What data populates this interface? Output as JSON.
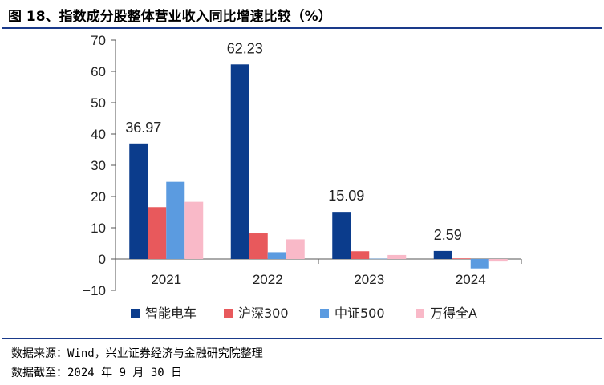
{
  "title": "图 18、指数成分股整体营业收入同比增速比较（%）",
  "source_lines": [
    "数据来源：Wind，兴业证券经济与金融研究院整理",
    "数据截至：2024 年 9 月 30 日"
  ],
  "chart_data": {
    "type": "bar",
    "title": "图 18、指数成分股整体营业收入同比增速比较（%）",
    "xlabel": "",
    "ylabel": "",
    "categories": [
      "2021",
      "2022",
      "2023",
      "2024"
    ],
    "ylim": [
      -10,
      70
    ],
    "yticks": [
      -10,
      0,
      10,
      20,
      30,
      40,
      50,
      60,
      70
    ],
    "ytick_labels": [
      "−10",
      "0",
      "10",
      "20",
      "30",
      "40",
      "50",
      "60",
      "70"
    ],
    "grid": false,
    "legend_position": "bottom",
    "series": [
      {
        "name": "智能电车",
        "color": "#0b3c8c",
        "values": [
          36.97,
          62.23,
          15.09,
          2.59
        ]
      },
      {
        "name": "沪深300",
        "color": "#e8595c",
        "values": [
          16.6,
          8.2,
          2.5,
          0.2
        ]
      },
      {
        "name": "中证500",
        "color": "#5b9be0",
        "values": [
          24.7,
          2.2,
          0.1,
          -3.0
        ]
      },
      {
        "name": "万得全A",
        "color": "#f9b9c8",
        "values": [
          18.3,
          6.3,
          1.3,
          -0.8
        ]
      }
    ],
    "data_labels": [
      {
        "series": 0,
        "category": 0,
        "text": "36.97"
      },
      {
        "series": 0,
        "category": 1,
        "text": "62.23"
      },
      {
        "series": 0,
        "category": 2,
        "text": "15.09"
      },
      {
        "series": 0,
        "category": 3,
        "text": "2.59"
      }
    ]
  }
}
